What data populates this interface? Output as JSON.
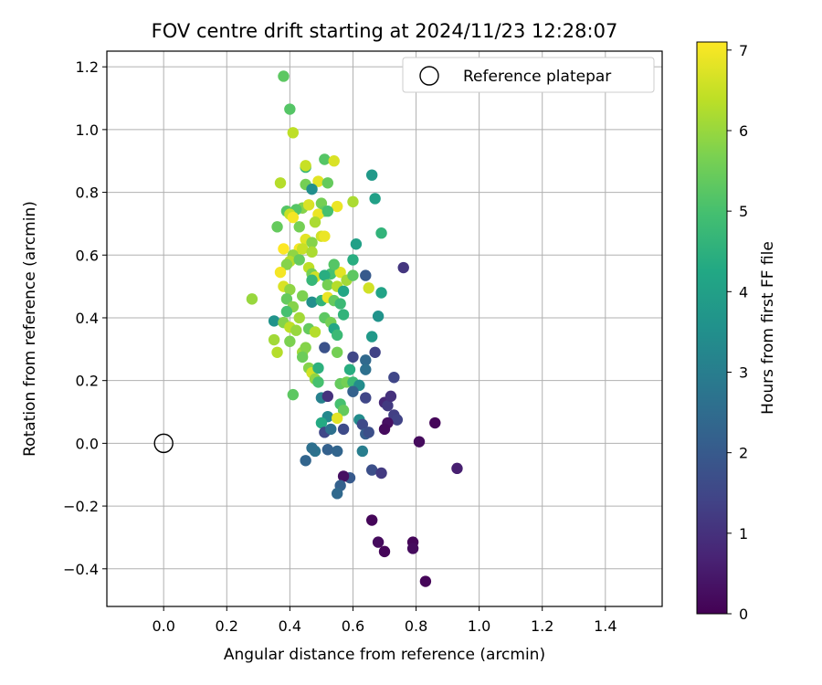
{
  "chart_data": {
    "type": "scatter",
    "title": "FOV centre drift starting at 2024/11/23 12:28:07",
    "xlabel": "Angular distance from reference (arcmin)",
    "ylabel": "Rotation from reference (arcmin)",
    "xlim": [
      -0.18,
      1.58
    ],
    "ylim": [
      -0.52,
      1.25
    ],
    "x_ticks": [
      "0.0",
      "0.2",
      "0.4",
      "0.6",
      "0.8",
      "1.0",
      "1.2",
      "1.4"
    ],
    "y_ticks": [
      "−0.4",
      "−0.2",
      "0.0",
      "0.2",
      "0.4",
      "0.6",
      "0.8",
      "1.0",
      "1.2"
    ],
    "grid": true,
    "legend": {
      "position": "top-right",
      "entries": [
        "Reference platepar"
      ]
    },
    "reference_point": {
      "x": 0.0,
      "y": 0.0
    },
    "colorbar": {
      "label": "Hours from first FF file",
      "min": 0,
      "max": 7.1,
      "ticks": [
        "0",
        "1",
        "2",
        "3",
        "4",
        "5",
        "6",
        "7"
      ],
      "colormap": "viridis"
    },
    "points": [
      [
        0.38,
        1.17,
        5.3
      ],
      [
        0.4,
        1.065,
        5.2
      ],
      [
        0.41,
        0.99,
        6.4
      ],
      [
        0.45,
        0.88,
        4.6
      ],
      [
        0.45,
        0.885,
        6.5
      ],
      [
        0.51,
        0.905,
        5.2
      ],
      [
        0.54,
        0.9,
        6.7
      ],
      [
        0.66,
        0.855,
        3.8
      ],
      [
        0.37,
        0.83,
        6.3
      ],
      [
        0.45,
        0.825,
        5.6
      ],
      [
        0.49,
        0.835,
        6.8
      ],
      [
        0.52,
        0.83,
        5.4
      ],
      [
        0.47,
        0.81,
        3.5
      ],
      [
        0.67,
        0.78,
        4.0
      ],
      [
        0.5,
        0.765,
        5.6
      ],
      [
        0.6,
        0.77,
        6.2
      ],
      [
        0.44,
        0.75,
        5.8
      ],
      [
        0.42,
        0.745,
        5.2
      ],
      [
        0.46,
        0.76,
        6.7
      ],
      [
        0.51,
        0.74,
        5.4
      ],
      [
        0.55,
        0.755,
        6.9
      ],
      [
        0.39,
        0.74,
        5.2
      ],
      [
        0.4,
        0.73,
        6.5
      ],
      [
        0.41,
        0.72,
        7.0
      ],
      [
        0.49,
        0.73,
        6.9
      ],
      [
        0.52,
        0.74,
        5.0
      ],
      [
        0.36,
        0.69,
        5.4
      ],
      [
        0.43,
        0.69,
        5.6
      ],
      [
        0.48,
        0.705,
        6.2
      ],
      [
        0.5,
        0.66,
        6.6
      ],
      [
        0.69,
        0.67,
        4.6
      ],
      [
        0.45,
        0.65,
        6.8
      ],
      [
        0.47,
        0.64,
        5.8
      ],
      [
        0.51,
        0.66,
        6.9
      ],
      [
        0.43,
        0.62,
        7.0
      ],
      [
        0.38,
        0.62,
        7.1
      ],
      [
        0.44,
        0.62,
        6.5
      ],
      [
        0.47,
        0.61,
        6.2
      ],
      [
        0.41,
        0.6,
        5.9
      ],
      [
        0.61,
        0.635,
        4.0
      ],
      [
        0.4,
        0.58,
        6.3
      ],
      [
        0.43,
        0.585,
        5.4
      ],
      [
        0.39,
        0.57,
        5.8
      ],
      [
        0.46,
        0.56,
        6.4
      ],
      [
        0.6,
        0.585,
        4.4
      ],
      [
        0.37,
        0.545,
        7.0
      ],
      [
        0.47,
        0.54,
        5.6
      ],
      [
        0.48,
        0.53,
        6.6
      ],
      [
        0.53,
        0.54,
        5.0
      ],
      [
        0.56,
        0.545,
        6.8
      ],
      [
        0.54,
        0.57,
        5.2
      ],
      [
        0.51,
        0.535,
        4.4
      ],
      [
        0.64,
        0.535,
        2.0
      ],
      [
        0.76,
        0.56,
        1.1
      ],
      [
        0.58,
        0.52,
        6.1
      ],
      [
        0.6,
        0.535,
        5.3
      ],
      [
        0.38,
        0.5,
        6.7
      ],
      [
        0.4,
        0.49,
        5.9
      ],
      [
        0.47,
        0.52,
        4.7
      ],
      [
        0.52,
        0.505,
        5.6
      ],
      [
        0.55,
        0.5,
        6.3
      ],
      [
        0.57,
        0.485,
        4.2
      ],
      [
        0.65,
        0.495,
        6.6
      ],
      [
        0.69,
        0.48,
        4.1
      ],
      [
        0.28,
        0.46,
        6.0
      ],
      [
        0.39,
        0.46,
        5.4
      ],
      [
        0.44,
        0.47,
        5.7
      ],
      [
        0.47,
        0.45,
        3.5
      ],
      [
        0.5,
        0.455,
        4.6
      ],
      [
        0.52,
        0.465,
        6.9
      ],
      [
        0.54,
        0.455,
        5.4
      ],
      [
        0.41,
        0.435,
        5.8
      ],
      [
        0.56,
        0.445,
        4.8
      ],
      [
        0.39,
        0.42,
        5.0
      ],
      [
        0.35,
        0.39,
        3.6
      ],
      [
        0.43,
        0.4,
        6.1
      ],
      [
        0.38,
        0.385,
        5.8
      ],
      [
        0.4,
        0.37,
        6.4
      ],
      [
        0.42,
        0.36,
        6.0
      ],
      [
        0.46,
        0.365,
        5.4
      ],
      [
        0.48,
        0.355,
        6.3
      ],
      [
        0.51,
        0.4,
        5.3
      ],
      [
        0.53,
        0.385,
        5.6
      ],
      [
        0.54,
        0.365,
        4.2
      ],
      [
        0.55,
        0.345,
        4.8
      ],
      [
        0.57,
        0.41,
        4.6
      ],
      [
        0.68,
        0.405,
        3.6
      ],
      [
        0.66,
        0.34,
        3.8
      ],
      [
        0.35,
        0.33,
        6.1
      ],
      [
        0.4,
        0.325,
        5.7
      ],
      [
        0.44,
        0.29,
        6.1
      ],
      [
        0.36,
        0.29,
        6.3
      ],
      [
        0.45,
        0.305,
        5.8
      ],
      [
        0.44,
        0.275,
        5.5
      ],
      [
        0.51,
        0.305,
        1.8
      ],
      [
        0.55,
        0.29,
        5.6
      ],
      [
        0.6,
        0.275,
        1.5
      ],
      [
        0.64,
        0.265,
        2.4
      ],
      [
        0.67,
        0.29,
        1.4
      ],
      [
        0.46,
        0.24,
        5.8
      ],
      [
        0.47,
        0.225,
        6.6
      ],
      [
        0.49,
        0.24,
        4.5
      ],
      [
        0.48,
        0.205,
        5.9
      ],
      [
        0.59,
        0.235,
        4.4
      ],
      [
        0.64,
        0.235,
        2.6
      ],
      [
        0.73,
        0.21,
        1.5
      ],
      [
        0.49,
        0.195,
        5.0
      ],
      [
        0.56,
        0.19,
        5.4
      ],
      [
        0.58,
        0.195,
        5.6
      ],
      [
        0.6,
        0.195,
        4.8
      ],
      [
        0.62,
        0.185,
        3.4
      ],
      [
        0.41,
        0.155,
        5.3
      ],
      [
        0.5,
        0.145,
        3.1
      ],
      [
        0.52,
        0.15,
        1.0
      ],
      [
        0.6,
        0.165,
        2.2
      ],
      [
        0.64,
        0.145,
        1.5
      ],
      [
        0.56,
        0.125,
        5.0
      ],
      [
        0.57,
        0.105,
        5.4
      ],
      [
        0.52,
        0.085,
        3.3
      ],
      [
        0.55,
        0.08,
        6.8
      ],
      [
        0.5,
        0.065,
        4.3
      ],
      [
        0.62,
        0.075,
        3.4
      ],
      [
        0.63,
        0.06,
        1.6
      ],
      [
        0.7,
        0.13,
        0.8
      ],
      [
        0.71,
        0.12,
        1.2
      ],
      [
        0.72,
        0.15,
        1.0
      ],
      [
        0.73,
        0.09,
        1.3
      ],
      [
        0.74,
        0.075,
        1.4
      ],
      [
        0.71,
        0.065,
        0.3
      ],
      [
        0.7,
        0.045,
        0.2
      ],
      [
        0.86,
        0.065,
        0.1
      ],
      [
        0.51,
        0.035,
        1.5
      ],
      [
        0.53,
        0.045,
        2.6
      ],
      [
        0.57,
        0.045,
        1.6
      ],
      [
        0.64,
        0.03,
        2.1
      ],
      [
        0.65,
        0.035,
        1.7
      ],
      [
        0.81,
        0.005,
        0.2
      ],
      [
        0.48,
        -0.025,
        2.7
      ],
      [
        0.47,
        -0.015,
        2.6
      ],
      [
        0.52,
        -0.02,
        2.2
      ],
      [
        0.55,
        -0.025,
        2.3
      ],
      [
        0.63,
        -0.025,
        3.0
      ],
      [
        0.45,
        -0.055,
        2.3
      ],
      [
        0.59,
        -0.11,
        2.0
      ],
      [
        0.57,
        -0.105,
        0.3
      ],
      [
        0.56,
        -0.135,
        2.2
      ],
      [
        0.55,
        -0.16,
        2.4
      ],
      [
        0.66,
        -0.085,
        1.7
      ],
      [
        0.69,
        -0.095,
        1.2
      ],
      [
        0.93,
        -0.08,
        0.6
      ],
      [
        0.66,
        -0.245,
        0.1
      ],
      [
        0.68,
        -0.315,
        0.2
      ],
      [
        0.7,
        -0.345,
        0.1
      ],
      [
        0.79,
        -0.315,
        0.1
      ],
      [
        0.79,
        -0.335,
        0.2
      ],
      [
        0.83,
        -0.44,
        0.1
      ]
    ]
  }
}
